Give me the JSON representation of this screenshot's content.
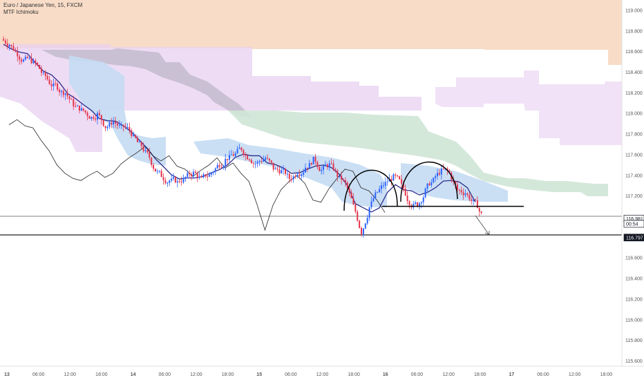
{
  "header": {
    "symbol_line": "Euro / Japanese Yen, 15, FXCM",
    "indicator": "MTF Ichimoku"
  },
  "colors": {
    "candle_up": "#2962ff",
    "candle_down": "#e5334b",
    "cloud_orange": "#f7d6bd",
    "cloud_purple": "#e8d0f2",
    "cloud_green": "#cfe6d6",
    "cloud_blue": "#c4dcf3",
    "cloud_gray": "#b7b0c0",
    "kijun": "#2b2d8c",
    "lagging": "#222222"
  },
  "chart_data": {
    "type": "candlestick",
    "symbol": "EUR/JPY",
    "timeframe": "15",
    "source": "FXCM",
    "ylim": [
      115.55,
      119.1
    ],
    "y_ticks": [
      "119.000",
      "118.800",
      "118.600",
      "118.400",
      "118.200",
      "118.000",
      "117.800",
      "117.600",
      "117.400",
      "117.200",
      "116.800",
      "116.600",
      "116.400",
      "116.200",
      "116.000",
      "115.800",
      "115.600"
    ],
    "x_ticks": [
      "13",
      "06:00",
      "12:00",
      "18:00",
      "14",
      "06:00",
      "12:00",
      "18:00",
      "15",
      "06:00",
      "12:00",
      "18:00",
      "16",
      "06:00",
      "12:00",
      "18:00",
      "17",
      "06:00",
      "12:00",
      "18:00"
    ],
    "x_ticks_bold": [
      "13",
      "14",
      "15",
      "16",
      "17"
    ],
    "price_badges": [
      {
        "label": "116.981",
        "value": 116.981,
        "style": "outline"
      },
      {
        "label": "00:54",
        "value": 116.93,
        "style": "outline"
      },
      {
        "label": "116.797",
        "value": 116.797,
        "style": "dark"
      }
    ],
    "horizontal_lines": [
      116.981,
      116.797
    ],
    "neckline": 117.1,
    "close_series": [
      118.67,
      118.58,
      118.52,
      118.49,
      118.4,
      118.3,
      118.26,
      118.2,
      118.09,
      118.03,
      117.97,
      117.99,
      117.87,
      117.92,
      117.86,
      117.84,
      117.72,
      117.62,
      117.48,
      117.4,
      117.35,
      117.33,
      117.38,
      117.42,
      117.36,
      117.4,
      117.49,
      117.55,
      117.6,
      117.66,
      117.57,
      117.52,
      117.57,
      117.47,
      117.44,
      117.37,
      117.43,
      117.48,
      117.55,
      117.45,
      117.5,
      117.4,
      117.32,
      117.1,
      116.85,
      117.09,
      117.24,
      117.32,
      117.38,
      117.3,
      117.14,
      117.12,
      117.25,
      117.35,
      117.44,
      117.42,
      117.26,
      117.23,
      117.14,
      117.02
    ]
  }
}
